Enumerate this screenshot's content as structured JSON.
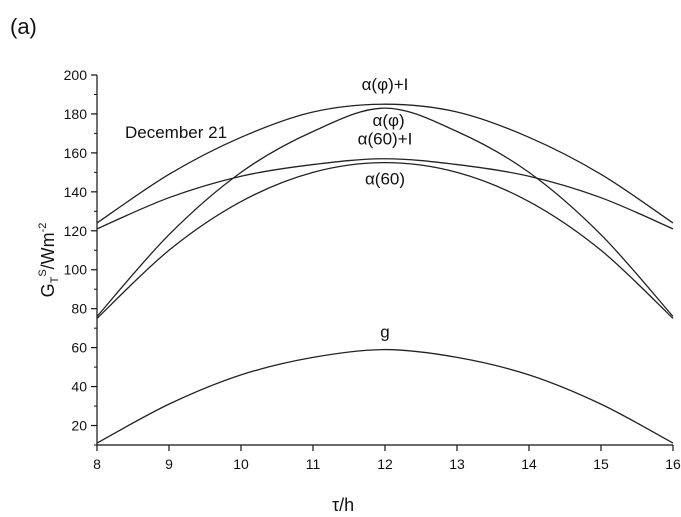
{
  "panel_label": "(a)",
  "chart_data": {
    "type": "line",
    "title": "",
    "xlabel": "τ/h",
    "ylabel": "G_T^S/Wm^-2",
    "xlim": [
      8,
      16
    ],
    "ylim": [
      10,
      200
    ],
    "xticks": [
      8,
      9,
      10,
      11,
      12,
      13,
      14,
      15,
      16
    ],
    "yticks": [
      20,
      40,
      60,
      80,
      100,
      120,
      140,
      160,
      180,
      200
    ],
    "grid": false,
    "annotation": "December 21",
    "series": [
      {
        "name": "α(φ)+I",
        "color": "#222222",
        "x": [
          8,
          9,
          10,
          11,
          12,
          13,
          14,
          15,
          16
        ],
        "y": [
          124,
          149,
          168,
          181,
          185,
          181,
          168,
          149,
          124
        ]
      },
      {
        "name": "α(φ)",
        "color": "#222222",
        "x": [
          8,
          9,
          10,
          11,
          12,
          13,
          14,
          15,
          16
        ],
        "y": [
          76,
          118,
          150,
          171,
          183,
          171,
          150,
          118,
          76
        ]
      },
      {
        "name": "α(60)+I",
        "color": "#222222",
        "x": [
          8,
          9,
          10,
          11,
          12,
          13,
          14,
          15,
          16
        ],
        "y": [
          121,
          137,
          148,
          154,
          157,
          154,
          148,
          137,
          121
        ]
      },
      {
        "name": "α(60)",
        "color": "#222222",
        "x": [
          8,
          9,
          10,
          11,
          12,
          13,
          14,
          15,
          16
        ],
        "y": [
          75,
          110,
          135,
          150,
          155,
          150,
          135,
          110,
          75
        ]
      },
      {
        "name": "g",
        "color": "#222222",
        "x": [
          8,
          9,
          10,
          11,
          12,
          13,
          14,
          15,
          16
        ],
        "y": [
          11,
          31,
          46,
          55,
          59,
          55,
          46,
          31,
          11
        ]
      }
    ]
  }
}
